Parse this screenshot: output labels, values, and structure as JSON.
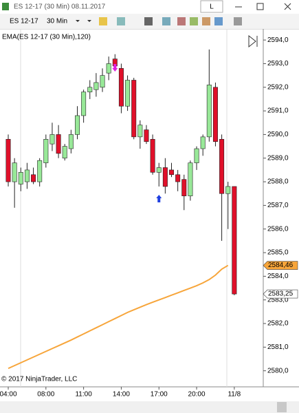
{
  "window": {
    "title": "ES 12-17 (30 Min)  08.11.2017",
    "button": "L"
  },
  "toolbar": {
    "instrument": "ES 12-17",
    "interval": "30 Min"
  },
  "chart_data": {
    "type": "candlestick",
    "copyright": "© 2017 NinjaTrader, LLC",
    "categories": [
      "04:00",
      null,
      null,
      null,
      null,
      null,
      "08:00",
      null,
      null,
      null,
      null,
      null,
      "11:00",
      null,
      null,
      null,
      null,
      null,
      "14:00",
      null,
      null,
      null,
      null,
      null,
      "17:00",
      null,
      null,
      null,
      null,
      null,
      "20:00",
      null,
      null,
      null,
      null,
      null,
      "11/8"
    ],
    "open": [
      2589.8,
      2588.0,
      2587.9,
      2588.0,
      2588.3,
      2588.0,
      2588.8,
      2589.6,
      2590.0,
      2589.0,
      2589.4,
      2590.0,
      2590.8,
      2591.8,
      2591.9,
      2592.0,
      2592.6,
      2593.2,
      2592.8,
      2591.2,
      2592.3,
      2589.9,
      2590.2,
      2589.8,
      2588.4,
      2588.6,
      2588.5,
      2588.3,
      2588.1,
      2587.4,
      2588.8,
      2589.4,
      2589.9,
      2592.0,
      2589.8,
      2587.5,
      2587.8
    ],
    "high": [
      2590.0,
      2589.0,
      2588.6,
      2588.8,
      2588.6,
      2589.0,
      2590.0,
      2590.5,
      2590.4,
      2589.6,
      2590.2,
      2591.2,
      2591.9,
      2592.3,
      2592.6,
      2592.8,
      2593.3,
      2593.4,
      2593.0,
      2592.5,
      2592.4,
      2590.6,
      2590.4,
      2590.0,
      2588.8,
      2589.0,
      2588.8,
      2588.5,
      2588.3,
      2588.9,
      2589.5,
      2590.0,
      2593.6,
      2592.2,
      2590.0,
      2588.0,
      2587.8
    ],
    "low": [
      2587.8,
      2586.9,
      2587.6,
      2587.7,
      2587.9,
      2587.8,
      2588.6,
      2589.3,
      2589.0,
      2588.9,
      2589.2,
      2589.8,
      2590.5,
      2591.5,
      2591.6,
      2591.8,
      2592.3,
      2592.8,
      2590.9,
      2591.0,
      2589.8,
      2589.4,
      2589.6,
      2588.3,
      2587.8,
      2587.5,
      2588.2,
      2587.6,
      2586.8,
      2587.2,
      2588.5,
      2589.1,
      2589.7,
      2589.5,
      2585.5,
      2586.0,
      2583.2
    ],
    "close": [
      2588.0,
      2588.8,
      2588.4,
      2588.5,
      2588.0,
      2588.9,
      2589.8,
      2590.0,
      2589.2,
      2589.5,
      2590.0,
      2590.8,
      2591.8,
      2592.0,
      2592.2,
      2592.5,
      2593.0,
      2592.9,
      2591.2,
      2592.3,
      2589.9,
      2590.4,
      2589.7,
      2588.4,
      2588.6,
      2587.8,
      2588.3,
      2588.0,
      2587.4,
      2588.8,
      2589.4,
      2589.9,
      2592.1,
      2589.7,
      2587.5,
      2587.8,
      2583.25
    ],
    "up_color": "#98e898",
    "down_color": "#e0102a",
    "series": [
      {
        "name": "EMA(ES 12-17 (30 Min),120)",
        "color": "#f7a53a",
        "values": [
          2580.1,
          2580.22,
          2580.34,
          2580.46,
          2580.58,
          2580.7,
          2580.82,
          2580.94,
          2581.06,
          2581.18,
          2581.3,
          2581.43,
          2581.56,
          2581.69,
          2581.82,
          2581.95,
          2582.08,
          2582.21,
          2582.34,
          2582.47,
          2582.58,
          2582.69,
          2582.8,
          2582.9,
          2583.0,
          2583.1,
          2583.2,
          2583.3,
          2583.4,
          2583.5,
          2583.6,
          2583.72,
          2583.86,
          2584.05,
          2584.3,
          2584.46,
          null
        ]
      }
    ],
    "ylim": [
      2579.32,
      2594.47
    ],
    "yticks": [
      {
        "value": 2580,
        "label": "2580,0"
      },
      {
        "value": 2581,
        "label": "2581,0"
      },
      {
        "value": 2582,
        "label": "2582,0"
      },
      {
        "value": 2583,
        "label": "2583,0"
      },
      {
        "value": 2584,
        "label": "2584,0"
      },
      {
        "value": 2585,
        "label": "2585,0"
      },
      {
        "value": 2586,
        "label": "2586,0"
      },
      {
        "value": 2587,
        "label": "2587,0"
      },
      {
        "value": 2588,
        "label": "2588,0"
      },
      {
        "value": 2589,
        "label": "2589,0"
      },
      {
        "value": 2590,
        "label": "2590,0"
      },
      {
        "value": 2591,
        "label": "2591,0"
      },
      {
        "value": 2592,
        "label": "2592,0"
      },
      {
        "value": 2593,
        "label": "2593,0"
      },
      {
        "value": 2594,
        "label": "2594,0"
      }
    ],
    "price_markers": [
      {
        "value": 2584.46,
        "label": "2584,46",
        "color": "#f7a53a"
      },
      {
        "value": 2583.25,
        "label": "2583,25",
        "color": "#ffffff"
      }
    ]
  }
}
